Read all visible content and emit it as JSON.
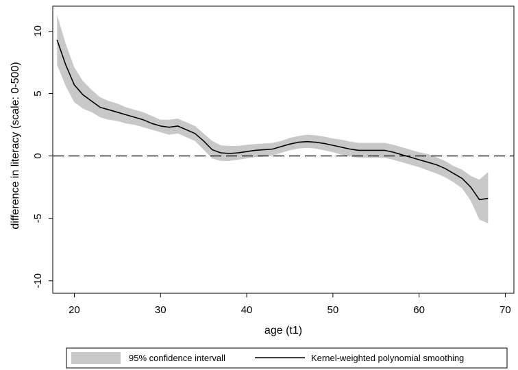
{
  "chart_data": {
    "type": "line",
    "xlabel": "age (t1)",
    "ylabel": "difference in literacy (scale: 0-500)",
    "xlim": [
      17.5,
      71
    ],
    "ylim": [
      -11,
      12
    ],
    "x_ticks": [
      20,
      30,
      40,
      50,
      60,
      70
    ],
    "y_ticks": [
      10,
      5,
      0,
      -5,
      -10
    ],
    "grid": false,
    "reference_line": {
      "y": 0,
      "style": "dashed"
    },
    "legend": {
      "placement": "bottom",
      "entries": [
        {
          "label": "95% confidence intervall",
          "kind": "band"
        },
        {
          "label": "Kernel-weighted polynomial smoothing",
          "kind": "line"
        }
      ]
    },
    "series": [
      {
        "name": "Kernel-weighted polynomial smoothing",
        "x": [
          18,
          19,
          20,
          21,
          22,
          23,
          24,
          25,
          26,
          27,
          28,
          29,
          30,
          31,
          32,
          33,
          34,
          35,
          36,
          37,
          38,
          39,
          40,
          41,
          42,
          43,
          44,
          45,
          46,
          47,
          48,
          49,
          50,
          51,
          52,
          53,
          54,
          55,
          56,
          57,
          58,
          59,
          60,
          61,
          62,
          63,
          64,
          65,
          66,
          67,
          68
        ],
        "y": [
          9.3,
          7.3,
          5.7,
          4.9,
          4.4,
          3.9,
          3.7,
          3.5,
          3.3,
          3.1,
          2.9,
          2.6,
          2.4,
          2.3,
          2.4,
          2.1,
          1.8,
          1.2,
          0.5,
          0.25,
          0.2,
          0.25,
          0.35,
          0.45,
          0.5,
          0.55,
          0.75,
          0.95,
          1.1,
          1.15,
          1.1,
          1.0,
          0.85,
          0.7,
          0.55,
          0.45,
          0.45,
          0.45,
          0.45,
          0.3,
          0.1,
          -0.1,
          -0.3,
          -0.5,
          -0.7,
          -1.0,
          -1.4,
          -1.8,
          -2.5,
          -3.5,
          -3.4
        ]
      },
      {
        "name": "95% confidence intervall",
        "x": [
          18,
          19,
          20,
          21,
          22,
          23,
          24,
          25,
          26,
          27,
          28,
          29,
          30,
          31,
          32,
          33,
          34,
          35,
          36,
          37,
          38,
          39,
          40,
          41,
          42,
          43,
          44,
          45,
          46,
          47,
          48,
          49,
          50,
          51,
          52,
          53,
          54,
          55,
          56,
          57,
          58,
          59,
          60,
          61,
          62,
          63,
          64,
          65,
          66,
          67,
          68
        ],
        "y_upper": [
          11.3,
          9.0,
          7.1,
          6.0,
          5.3,
          4.7,
          4.4,
          4.2,
          3.9,
          3.7,
          3.5,
          3.2,
          2.9,
          2.9,
          3.0,
          2.7,
          2.4,
          1.8,
          1.2,
          0.85,
          0.8,
          0.8,
          0.9,
          0.95,
          1.0,
          1.05,
          1.2,
          1.45,
          1.6,
          1.7,
          1.65,
          1.55,
          1.4,
          1.3,
          1.15,
          1.05,
          1.05,
          1.05,
          1.05,
          0.9,
          0.7,
          0.5,
          0.3,
          0.15,
          -0.1,
          -0.4,
          -0.8,
          -1.1,
          -1.6,
          -1.9,
          -1.3
        ],
        "y_lower": [
          7.3,
          5.6,
          4.3,
          3.8,
          3.5,
          3.1,
          2.9,
          2.8,
          2.6,
          2.5,
          2.3,
          2.1,
          1.9,
          1.7,
          1.8,
          1.5,
          1.2,
          0.5,
          -0.2,
          -0.4,
          -0.4,
          -0.3,
          -0.2,
          -0.1,
          -0.05,
          0.05,
          0.25,
          0.45,
          0.6,
          0.65,
          0.6,
          0.45,
          0.3,
          0.1,
          -0.05,
          -0.15,
          -0.15,
          -0.15,
          -0.15,
          -0.3,
          -0.5,
          -0.7,
          -0.9,
          -1.15,
          -1.4,
          -1.7,
          -2.1,
          -2.6,
          -3.6,
          -5.1,
          -5.4
        ]
      }
    ]
  },
  "colors": {
    "band": "#c8c8c8",
    "line": "#000000",
    "frame": "#000000",
    "background": "#ffffff"
  }
}
